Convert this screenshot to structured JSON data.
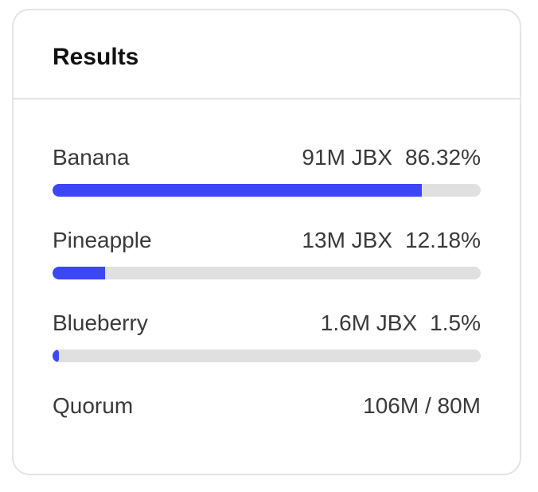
{
  "card": {
    "title": "Results"
  },
  "options": [
    {
      "label": "Banana",
      "amount": "91M JBX",
      "percent_text": "86.32%",
      "fraction": 0.8632
    },
    {
      "label": "Pineapple",
      "amount": "13M JBX",
      "percent_text": "12.18%",
      "fraction": 0.1218
    },
    {
      "label": "Blueberry",
      "amount": "1.6M JBX",
      "percent_text": "1.5%",
      "fraction": 0.015
    }
  ],
  "quorum": {
    "label": "Quorum",
    "value": "106M / 80M"
  },
  "colors": {
    "bar_fill": "#3b47f5",
    "bar_track": "#e0e0e0",
    "border": "#e4e4e4"
  }
}
